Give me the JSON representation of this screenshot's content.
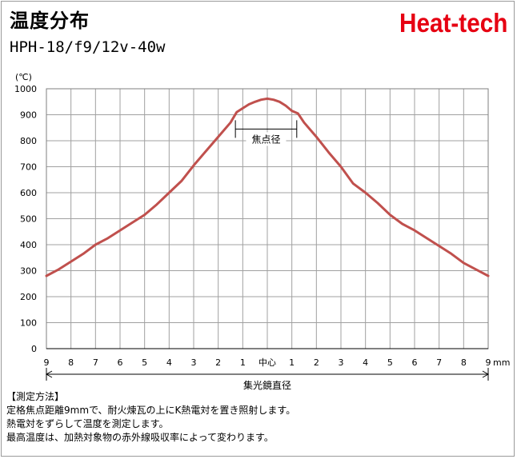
{
  "header": {
    "title": "温度分布",
    "subtitle": "HPH-18/f9/12v-40w",
    "brand": "Heat-tech"
  },
  "colors": {
    "curve": "#c0504d",
    "brand": "#e60012",
    "grid": "#a0a0a0"
  },
  "chart_data": {
    "type": "line",
    "title": "",
    "unit_label": "(℃)",
    "x_unit": "mm",
    "xlabel": "集光鏡直径",
    "ylim": [
      0,
      1000
    ],
    "y_ticks": [
      0,
      100,
      200,
      300,
      400,
      500,
      600,
      700,
      800,
      900,
      1000
    ],
    "xlim": [
      -9,
      9
    ],
    "x_ticks": [
      {
        "x": -9,
        "label": "9"
      },
      {
        "x": -8,
        "label": "8"
      },
      {
        "x": -7,
        "label": "7"
      },
      {
        "x": -6,
        "label": "6"
      },
      {
        "x": -5,
        "label": "5"
      },
      {
        "x": -4,
        "label": "4"
      },
      {
        "x": -3,
        "label": "3"
      },
      {
        "x": -2,
        "label": "2"
      },
      {
        "x": -1,
        "label": "1"
      },
      {
        "x": 0,
        "label": "中心"
      },
      {
        "x": 1,
        "label": "1"
      },
      {
        "x": 2,
        "label": "2"
      },
      {
        "x": 3,
        "label": "3"
      },
      {
        "x": 4,
        "label": "4"
      },
      {
        "x": 5,
        "label": "5"
      },
      {
        "x": 6,
        "label": "6"
      },
      {
        "x": 7,
        "label": "7"
      },
      {
        "x": 8,
        "label": "8"
      },
      {
        "x": 9,
        "label": "9"
      }
    ],
    "grid": true,
    "annotation": {
      "label": "焦点径",
      "x_from": -1.3,
      "x_to": 1.2,
      "y": 845
    },
    "series": [
      {
        "x": [
          -9,
          -8.5,
          -8,
          -7.5,
          -7,
          -6.5,
          -6,
          -5.5,
          -5,
          -4.5,
          -4,
          -3.5,
          -3,
          -2.5,
          -2,
          -1.5,
          -1.25,
          -1,
          -0.75,
          -0.5,
          -0.25,
          0,
          0.25,
          0.5,
          0.75,
          1,
          1.25,
          1.5,
          2,
          2.5,
          3,
          3.5,
          4,
          4.5,
          5,
          5.5,
          6,
          6.5,
          7,
          7.5,
          8,
          8.5,
          9
        ],
        "y": [
          280,
          305,
          335,
          365,
          400,
          425,
          455,
          485,
          515,
          555,
          600,
          645,
          705,
          760,
          815,
          870,
          910,
          925,
          940,
          950,
          958,
          962,
          958,
          950,
          935,
          915,
          905,
          870,
          815,
          755,
          700,
          635,
          600,
          560,
          515,
          480,
          455,
          425,
          395,
          365,
          330,
          305,
          280
        ]
      }
    ]
  },
  "notes": {
    "heading": "【測定方法】",
    "lines": [
      "定格焦点距離9mmで、耐火煉瓦の上にK熱電対を置き照射します。",
      "熱電対をずらして温度を測定します。",
      "最高温度は、加熱対象物の赤外線吸収率によって変わります。"
    ]
  }
}
